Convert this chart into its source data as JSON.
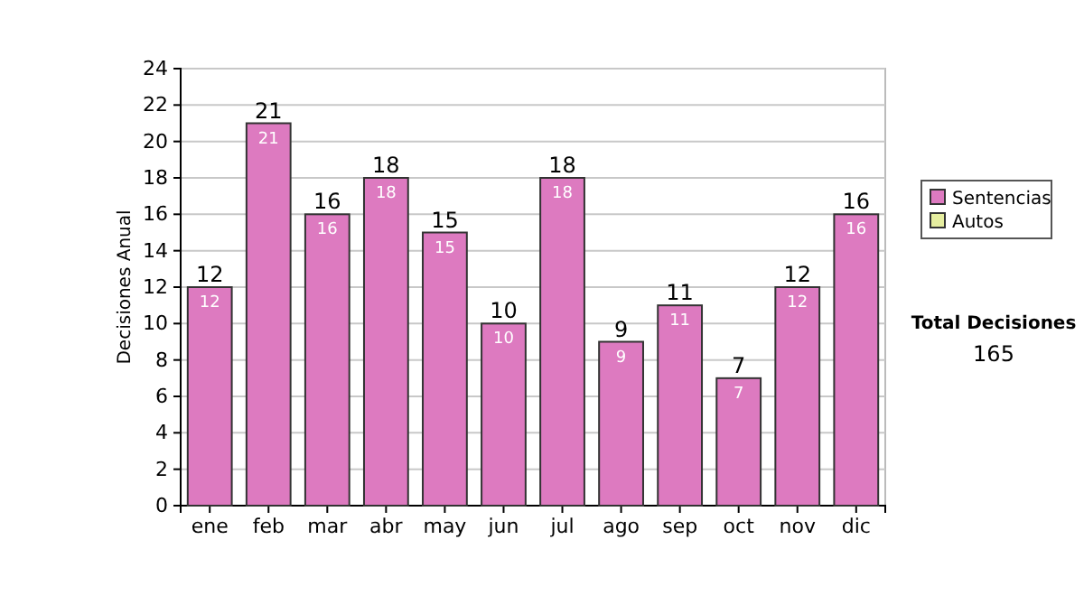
{
  "chart_data": {
    "type": "bar",
    "stacked": true,
    "ylabel": "Decisiones Anual",
    "categories": [
      "ene",
      "feb",
      "mar",
      "abr",
      "may",
      "jun",
      "jul",
      "ago",
      "sep",
      "oct",
      "nov",
      "dic"
    ],
    "series": [
      {
        "name": "Sentencias",
        "color": "#dd7ac0",
        "values": [
          12,
          21,
          16,
          18,
          15,
          10,
          18,
          9,
          11,
          7,
          12,
          16
        ],
        "value_labels": [
          "12",
          "21",
          "16",
          "18",
          "15",
          "10",
          "18",
          "9",
          "11",
          "7",
          "12",
          "16"
        ]
      },
      {
        "name": "Autos",
        "color": "#e6eea0",
        "values": [
          0,
          0,
          0,
          0,
          0,
          0,
          0,
          0,
          0,
          0,
          0,
          0
        ]
      }
    ],
    "totals": [
      "12",
      "21",
      "16",
      "18",
      "15",
      "10",
      "18",
      "9",
      "11",
      "7",
      "12",
      "16"
    ],
    "ylim": [
      0,
      24
    ],
    "yticks": [
      0,
      2,
      4,
      6,
      8,
      10,
      12,
      14,
      16,
      18,
      20,
      22,
      24
    ],
    "grid": "y",
    "legend": "right",
    "annotations": [
      "Total Decisiones",
      "165"
    ]
  }
}
